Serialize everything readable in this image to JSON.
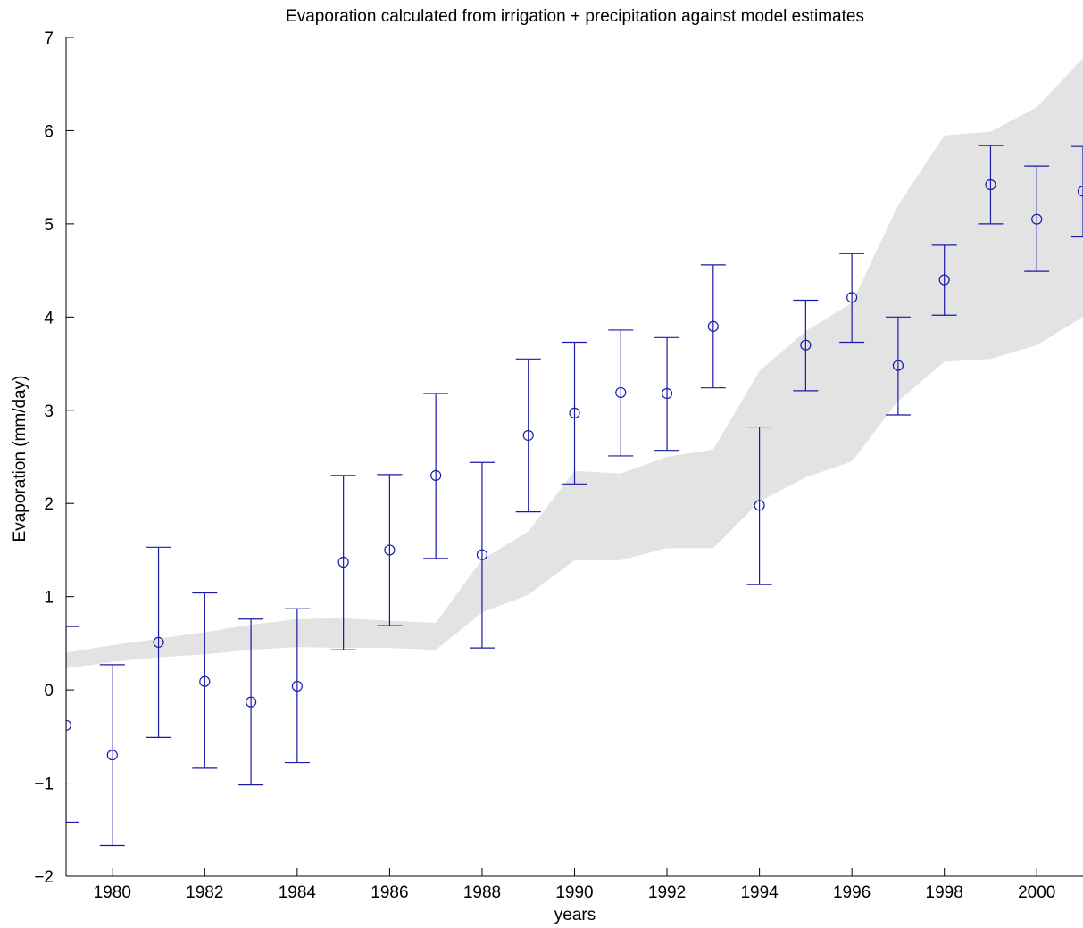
{
  "chart_data": {
    "type": "scatter",
    "title": "Evaporation calculated from irrigation + precipitation against model estimates",
    "xlabel": "years",
    "ylabel": "Evaporation (mm/day)",
    "xlim": [
      1979,
      2001
    ],
    "ylim": [
      -2,
      7
    ],
    "xticks": [
      1980,
      1982,
      1984,
      1986,
      1988,
      1990,
      1992,
      1994,
      1996,
      1998,
      2000
    ],
    "yticks": [
      -2,
      -1,
      0,
      1,
      2,
      3,
      4,
      5,
      6,
      7
    ],
    "grid": false,
    "legend": "none",
    "colors": {
      "points": "#1a1aa6",
      "band": "#e3e3e3",
      "axis": "#000000"
    },
    "series": [
      {
        "type": "errorbar",
        "marker": "circle",
        "x": [
          1979,
          1980,
          1981,
          1982,
          1983,
          1984,
          1985,
          1986,
          1987,
          1988,
          1989,
          1990,
          1991,
          1992,
          1993,
          1994,
          1995,
          1996,
          1997,
          1998,
          1999,
          2000,
          2001
        ],
        "y": [
          -0.38,
          -0.7,
          0.51,
          0.09,
          -0.13,
          0.04,
          1.37,
          1.5,
          2.3,
          1.45,
          2.73,
          2.97,
          3.19,
          3.18,
          3.9,
          1.98,
          3.7,
          4.21,
          3.48,
          4.4,
          5.42,
          5.05,
          5.35
        ],
        "lower": [
          -1.42,
          -1.67,
          -0.51,
          -0.84,
          -1.02,
          -0.78,
          0.43,
          0.69,
          1.41,
          0.45,
          1.91,
          2.21,
          2.51,
          2.57,
          3.24,
          1.13,
          3.21,
          3.73,
          2.95,
          4.02,
          5.0,
          4.49,
          4.86
        ],
        "upper": [
          0.68,
          0.27,
          1.53,
          1.04,
          0.76,
          0.87,
          2.3,
          2.31,
          3.18,
          2.44,
          3.55,
          3.73,
          3.86,
          3.78,
          4.56,
          2.82,
          4.18,
          4.68,
          4.0,
          4.77,
          5.84,
          5.62,
          5.83
        ]
      },
      {
        "type": "band",
        "x": [
          1979,
          1980,
          1981,
          1982,
          1983,
          1984,
          1985,
          1986,
          1987,
          1988,
          1989,
          1990,
          1991,
          1992,
          1993,
          1994,
          1995,
          1996,
          1997,
          1998,
          1999,
          2000,
          2001
        ],
        "upper": [
          0.4,
          0.48,
          0.55,
          0.62,
          0.7,
          0.76,
          0.77,
          0.74,
          0.72,
          1.4,
          1.7,
          2.35,
          2.32,
          2.5,
          2.58,
          3.42,
          3.85,
          4.15,
          5.2,
          5.95,
          5.99,
          6.25,
          6.78
        ],
        "lower": [
          0.23,
          0.3,
          0.35,
          0.38,
          0.43,
          0.46,
          0.45,
          0.45,
          0.43,
          0.83,
          1.02,
          1.39,
          1.39,
          1.52,
          1.52,
          2.02,
          2.28,
          2.45,
          3.1,
          3.52,
          3.55,
          3.7,
          4.0
        ]
      }
    ]
  }
}
